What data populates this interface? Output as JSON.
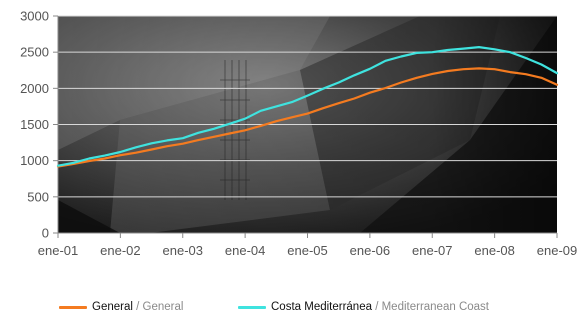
{
  "chart_data": {
    "type": "line",
    "x_tick_labels": [
      "ene-01",
      "ene-02",
      "ene-03",
      "ene-04",
      "ene-05",
      "ene-06",
      "ene-07",
      "ene-08",
      "ene-09"
    ],
    "y_tick_labels": [
      "0",
      "500",
      "1000",
      "1500",
      "2000",
      "2500",
      "3000"
    ],
    "ylim": [
      0,
      3000
    ],
    "grid": true,
    "legend_position": "bottom",
    "series": [
      {
        "name": "General / General",
        "name_es": "General",
        "name_en": "General",
        "color": "#F47B20",
        "x": [
          "ene-01",
          "abr-01",
          "jul-01",
          "oct-01",
          "ene-02",
          "abr-02",
          "jul-02",
          "oct-02",
          "ene-03",
          "abr-03",
          "jul-03",
          "oct-03",
          "ene-04",
          "abr-04",
          "jul-04",
          "oct-04",
          "ene-05",
          "abr-05",
          "jul-05",
          "oct-05",
          "ene-06",
          "abr-06",
          "jul-06",
          "oct-06",
          "ene-07",
          "abr-07",
          "jul-07",
          "oct-07",
          "ene-08",
          "abr-08",
          "jul-08",
          "oct-08",
          "ene-09"
        ],
        "values": [
          920,
          955,
          995,
          1030,
          1075,
          1110,
          1155,
          1200,
          1235,
          1285,
          1330,
          1375,
          1420,
          1480,
          1545,
          1600,
          1650,
          1725,
          1795,
          1860,
          1940,
          2005,
          2080,
          2145,
          2200,
          2240,
          2265,
          2275,
          2265,
          2225,
          2195,
          2145,
          2050
        ]
      },
      {
        "name": "Costa Mediterránea / Mediterranean Coast",
        "name_es": "Costa Mediterránea",
        "name_en": "Mediterranean Coast",
        "color": "#3FE3DF",
        "x": [
          "ene-01",
          "abr-01",
          "jul-01",
          "oct-01",
          "ene-02",
          "abr-02",
          "jul-02",
          "oct-02",
          "ene-03",
          "abr-03",
          "jul-03",
          "oct-03",
          "ene-04",
          "abr-04",
          "jul-04",
          "oct-04",
          "ene-05",
          "abr-05",
          "jul-05",
          "oct-05",
          "ene-06",
          "abr-06",
          "jul-06",
          "oct-06",
          "ene-07",
          "abr-07",
          "jul-07",
          "oct-07",
          "ene-08",
          "abr-08",
          "jul-08",
          "oct-08",
          "ene-09"
        ],
        "values": [
          930,
          970,
          1030,
          1070,
          1120,
          1185,
          1240,
          1280,
          1310,
          1385,
          1440,
          1510,
          1580,
          1690,
          1750,
          1810,
          1900,
          1995,
          2080,
          2180,
          2270,
          2380,
          2440,
          2490,
          2500,
          2530,
          2550,
          2570,
          2540,
          2500,
          2420,
          2330,
          2210
        ]
      }
    ]
  }
}
